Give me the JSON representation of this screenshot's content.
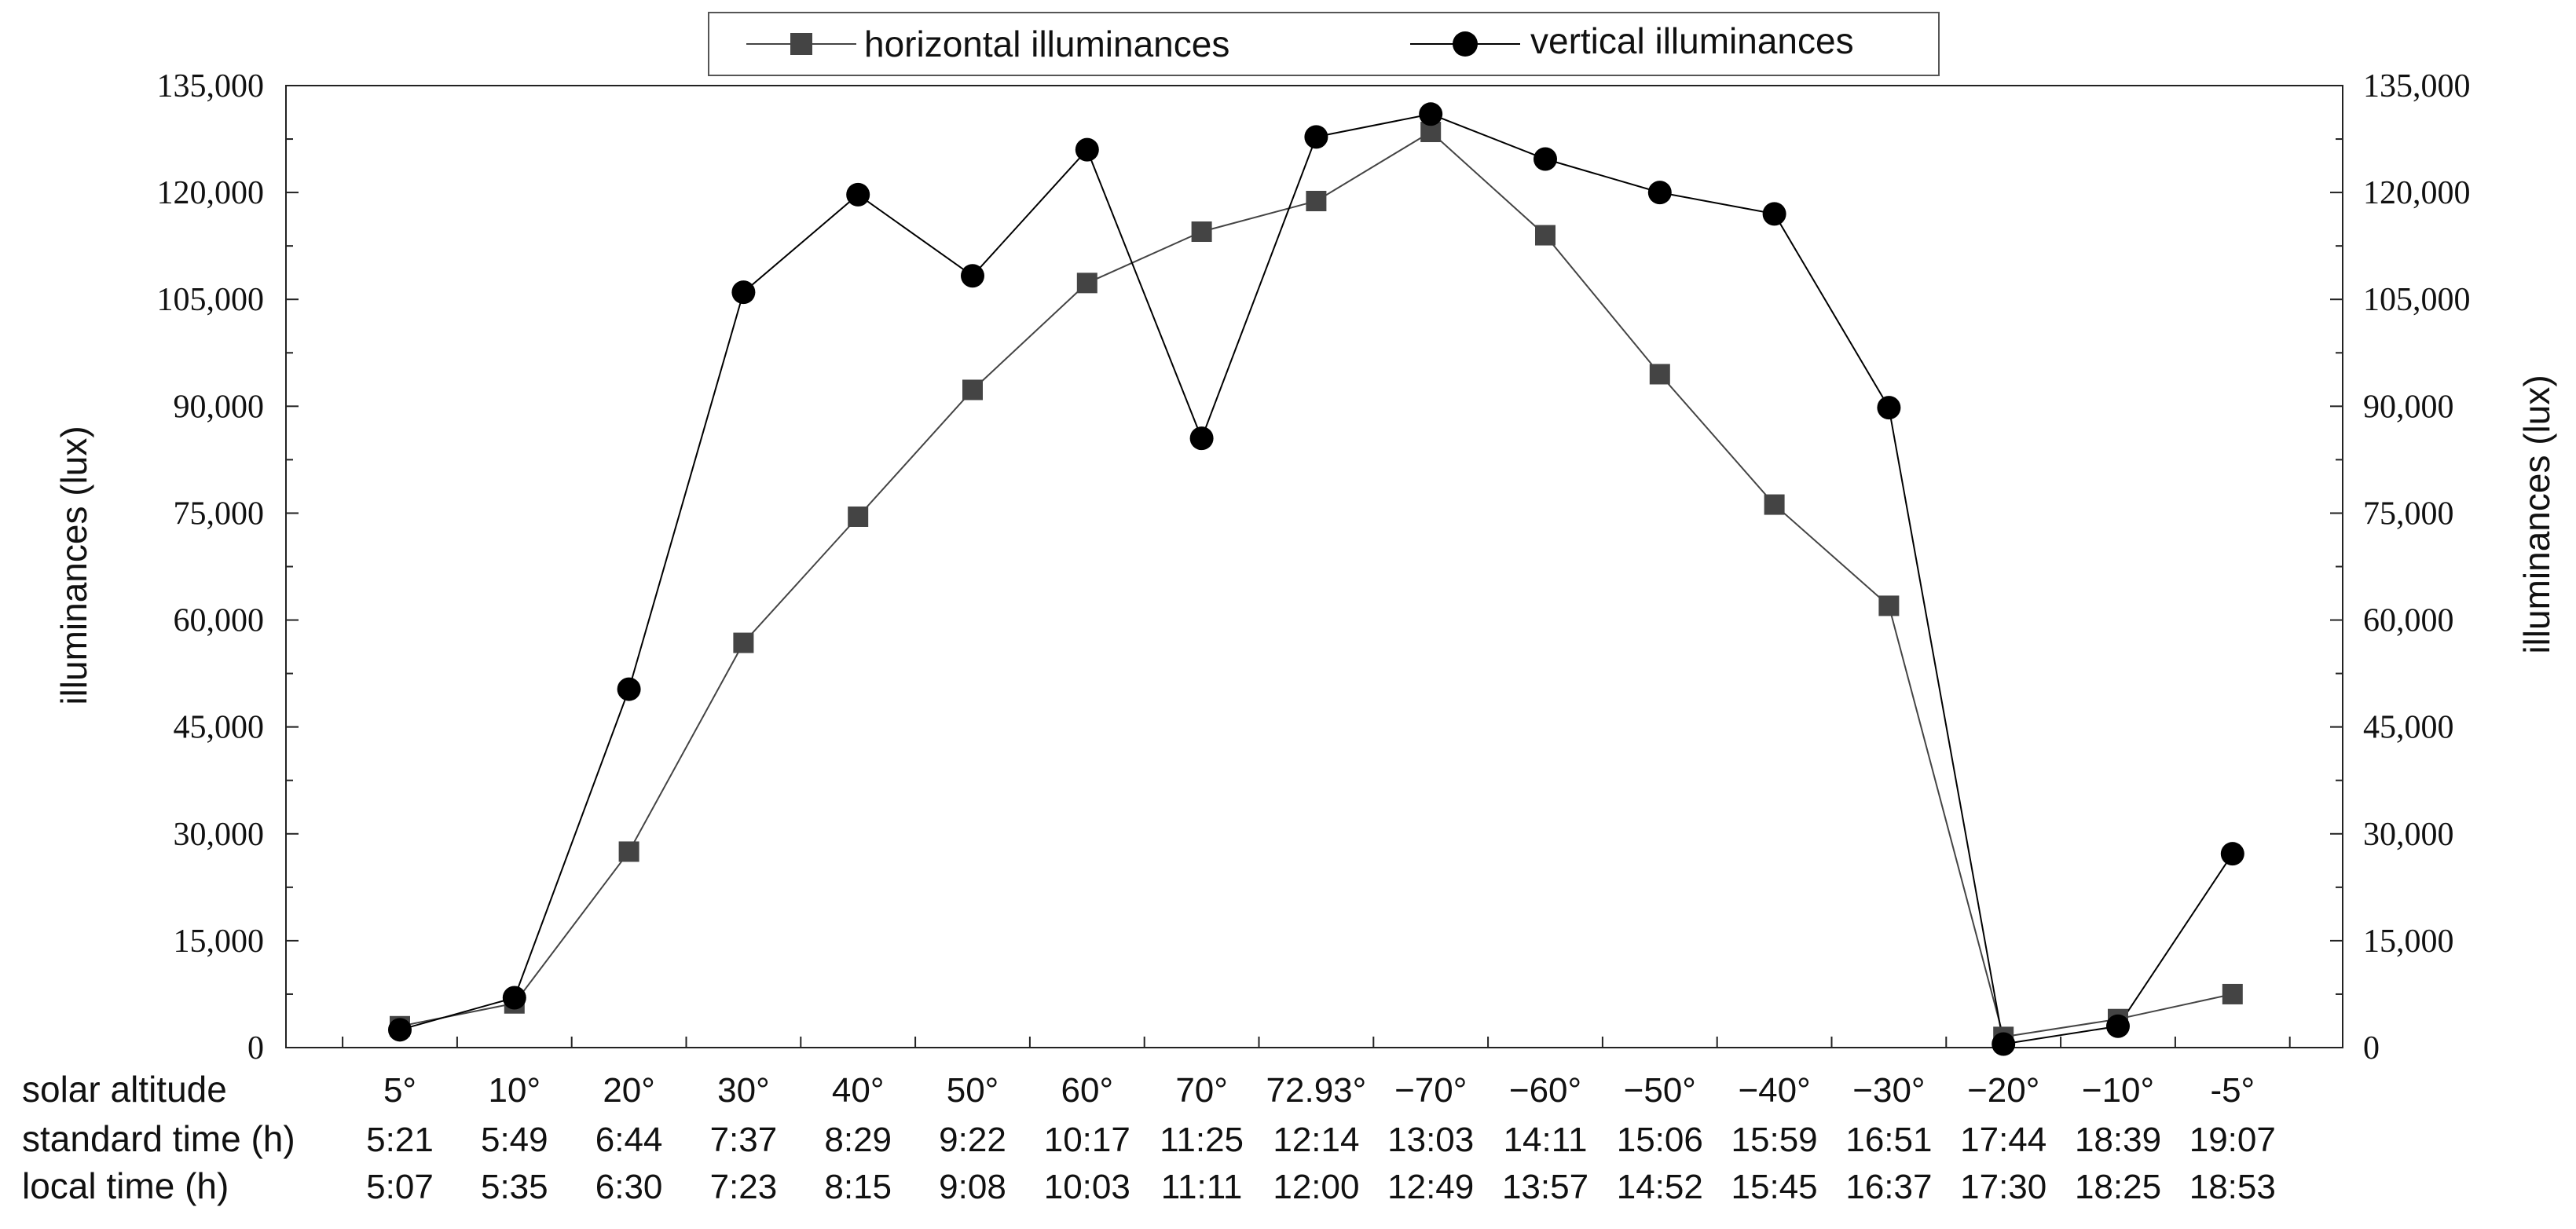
{
  "chart_data": {
    "type": "line",
    "title": "",
    "xlabel": "",
    "ylabel": "illuminances (lux)",
    "ylabel_right": "illuminances (lux)",
    "ylim": [
      0,
      135000
    ],
    "y_ticks": [
      "0",
      "15,000",
      "30,000",
      "45,000",
      "60,000",
      "75,000",
      "90,000",
      "105,000",
      "120,000",
      "135,000"
    ],
    "grid": false,
    "legend_position": "top-center",
    "row_labels": [
      "solar altitude",
      "standard time (h)",
      "local time (h)"
    ],
    "categories": [
      "5°",
      "10°",
      "20°",
      "30°",
      "40°",
      "50°",
      "60°",
      "70°",
      "72.93°",
      "−70°",
      "−60°",
      "−50°",
      "−40°",
      "−30°",
      "−20°",
      "−10°",
      "-5°"
    ],
    "standard_time": [
      "5:21",
      "5:49",
      "6:44",
      "7:37",
      "8:29",
      "9:22",
      "10:17",
      "11:25",
      "12:14",
      "13:03",
      "14:11",
      "15:06",
      "15:59",
      "16:51",
      "17:44",
      "18:39",
      "19:07"
    ],
    "local_time": [
      "5:07",
      "5:35",
      "6:30",
      "7:23",
      "8:15",
      "9:08",
      "10:03",
      "11:11",
      "12:00",
      "12:49",
      "13:57",
      "14:52",
      "15:45",
      "16:37",
      "17:30",
      "18:25",
      "18:53"
    ],
    "series": [
      {
        "name": "horizontal illuminances",
        "marker": "square",
        "color": "#444444",
        "values": [
          3000,
          6200,
          27500,
          56800,
          74500,
          92300,
          107300,
          114500,
          118800,
          128500,
          114000,
          94500,
          76200,
          62000,
          1500,
          4000,
          7500
        ]
      },
      {
        "name": "vertical illuminances",
        "marker": "circle",
        "color": "#000000",
        "values": [
          2500,
          7000,
          50300,
          106000,
          119700,
          108300,
          126000,
          85500,
          127800,
          131000,
          124700,
          120000,
          117000,
          89800,
          500,
          3000,
          27200
        ]
      }
    ]
  }
}
